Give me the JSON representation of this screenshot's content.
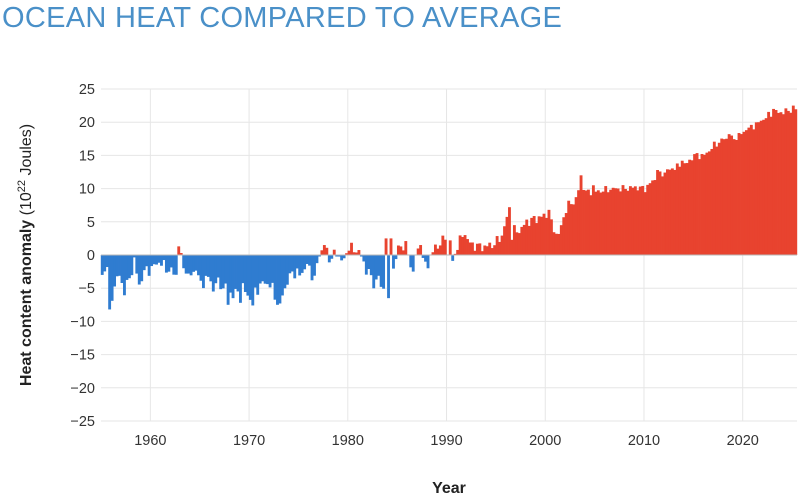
{
  "chart_data": {
    "type": "bar",
    "title": "OCEAN HEAT COMPARED TO AVERAGE",
    "xlabel": "Year",
    "ylabel": {
      "main": "Heat content anomaly",
      "unit_open": "(10",
      "unit_exp": "22",
      "unit_close": " Joules)"
    },
    "ylim": [
      -25,
      25
    ],
    "yticks": [
      25,
      20,
      15,
      10,
      5,
      0,
      -5,
      -10,
      -15,
      -20,
      -25
    ],
    "ytick_labels": [
      "25",
      "20",
      "15",
      "10",
      "5",
      "0",
      "−5",
      "−10",
      "−15",
      "−20",
      "−25"
    ],
    "xlim": [
      1955,
      2025.5
    ],
    "xticks": [
      1960,
      1970,
      1980,
      1990,
      2000,
      2010,
      2020
    ],
    "xtick_labels": [
      "1960",
      "1970",
      "1980",
      "1990",
      "2000",
      "2010",
      "2020"
    ],
    "x_start": 1955,
    "x_step": 0.25,
    "grid": true,
    "colors": {
      "positive": "#e8432f",
      "negative": "#2f7cd0",
      "title": "#4a90c8",
      "grid": "#e6e6e6"
    },
    "anchors": [
      [
        1955,
        -3
      ],
      [
        1955.5,
        -1.5
      ],
      [
        1955.75,
        -8
      ],
      [
        1956.25,
        -4.5
      ],
      [
        1956.75,
        -3
      ],
      [
        1957.25,
        -5.5
      ],
      [
        1957.75,
        -3.5
      ],
      [
        1958.25,
        -1
      ],
      [
        1958.75,
        -4.5
      ],
      [
        1959.25,
        -2.5
      ],
      [
        1960,
        -2
      ],
      [
        1960.75,
        -1
      ],
      [
        1961.5,
        -2
      ],
      [
        1962,
        -2.5
      ],
      [
        1962.5,
        -3
      ],
      [
        1962.75,
        1.2
      ],
      [
        1963.25,
        -2
      ],
      [
        1963.75,
        -3.5
      ],
      [
        1964.5,
        -2
      ],
      [
        1965,
        -4.5
      ],
      [
        1965.5,
        -3.5
      ],
      [
        1966.5,
        -4
      ],
      [
        1967.5,
        -5
      ],
      [
        1968.25,
        -6
      ],
      [
        1969.25,
        -5
      ],
      [
        1970,
        -6.5
      ],
      [
        1970.75,
        -5
      ],
      [
        1971.5,
        -4
      ],
      [
        1972.25,
        -5
      ],
      [
        1972.75,
        -7.2
      ],
      [
        1973.5,
        -5
      ],
      [
        1974.25,
        -2.5
      ],
      [
        1975,
        -3
      ],
      [
        1975.75,
        -1.5
      ],
      [
        1976.5,
        -3.5
      ],
      [
        1977,
        0.2
      ],
      [
        1977.5,
        1.2
      ],
      [
        1978,
        -0.5
      ],
      [
        1978.75,
        0.2
      ],
      [
        1979.5,
        -1
      ],
      [
        1980,
        1.5
      ],
      [
        1980.5,
        0.5
      ],
      [
        1981,
        0.8
      ],
      [
        1981.5,
        -1.5
      ],
      [
        1982,
        -2.5
      ],
      [
        1982.5,
        -4.5
      ],
      [
        1983,
        -3
      ],
      [
        1983.5,
        -4.5
      ],
      [
        1983.75,
        2
      ],
      [
        1984.5,
        -2
      ],
      [
        1985,
        1
      ],
      [
        1985.75,
        1.8
      ],
      [
        1986.25,
        -1.5
      ],
      [
        1987,
        0.5
      ],
      [
        1987.75,
        -1.5
      ],
      [
        1988.5,
        0.5
      ],
      [
        1989,
        1.5
      ],
      [
        1989.5,
        2
      ],
      [
        1990,
        0
      ],
      [
        1990.5,
        -1.2
      ],
      [
        1991,
        1.5
      ],
      [
        1991.5,
        2.8
      ],
      [
        1992.5,
        1.5
      ],
      [
        1993.5,
        1.2
      ],
      [
        1994.5,
        1.5
      ],
      [
        1995,
        2
      ],
      [
        1995.5,
        3
      ],
      [
        1996,
        5.5
      ],
      [
        1996.5,
        3
      ],
      [
        1997.5,
        4
      ],
      [
        1998,
        5
      ],
      [
        1999,
        5.5
      ],
      [
        2000,
        6
      ],
      [
        2000.5,
        4.5
      ],
      [
        2001.25,
        3
      ],
      [
        2002,
        7
      ],
      [
        2003,
        8.5
      ],
      [
        2003.5,
        11
      ],
      [
        2004,
        9.5
      ],
      [
        2005,
        9.5
      ],
      [
        2006,
        9.8
      ],
      [
        2007,
        10
      ],
      [
        2008,
        10
      ],
      [
        2009,
        10.2
      ],
      [
        2010,
        10
      ],
      [
        2011,
        11.5
      ],
      [
        2012,
        12.5
      ],
      [
        2013,
        13.2
      ],
      [
        2014,
        13.5
      ],
      [
        2015,
        15
      ],
      [
        2016,
        15
      ],
      [
        2017,
        16.5
      ],
      [
        2018,
        17.5
      ],
      [
        2019,
        17.5
      ],
      [
        2020,
        18.5
      ],
      [
        2021,
        19.5
      ],
      [
        2022,
        20.5
      ],
      [
        2023,
        21.5
      ],
      [
        2024,
        21.5
      ],
      [
        2025,
        22
      ]
    ],
    "overrides": [
      [
        1955.75,
        -8.2
      ],
      [
        1962.75,
        1.3
      ],
      [
        1963.5,
        -2.8
      ],
      [
        1966.25,
        -5.5
      ],
      [
        1967.75,
        -7.5
      ],
      [
        1968.25,
        -6.5
      ],
      [
        1969,
        -7.2
      ],
      [
        1970.25,
        -7.6
      ],
      [
        1972.75,
        -7.5
      ],
      [
        1973,
        -7.3
      ],
      [
        1977.5,
        1.5
      ],
      [
        1983.25,
        -4.8
      ],
      [
        1983.75,
        2.5
      ],
      [
        1984,
        -6.5
      ],
      [
        1984.25,
        2.5
      ],
      [
        1985.75,
        2.1
      ],
      [
        1986.5,
        -2.5
      ],
      [
        1987.25,
        1.5
      ],
      [
        1988,
        -2
      ],
      [
        1989.75,
        2.3
      ],
      [
        1990.25,
        2.2
      ],
      [
        1991.75,
        3
      ],
      [
        1992,
        2.4
      ],
      [
        1996.25,
        7.2
      ],
      [
        1996.75,
        4.5
      ],
      [
        2000.25,
        6.8
      ],
      [
        2001,
        3.2
      ],
      [
        2003.5,
        12
      ],
      [
        2004.75,
        10.5
      ],
      [
        2011.25,
        12.8
      ],
      [
        2013.75,
        14.2
      ],
      [
        2016.5,
        15.6
      ],
      [
        2018.5,
        18.2
      ],
      [
        2020.25,
        18.8
      ],
      [
        2021.5,
        20
      ],
      [
        2023,
        22
      ],
      [
        2024,
        21.2
      ],
      [
        2025,
        22.5
      ]
    ]
  }
}
